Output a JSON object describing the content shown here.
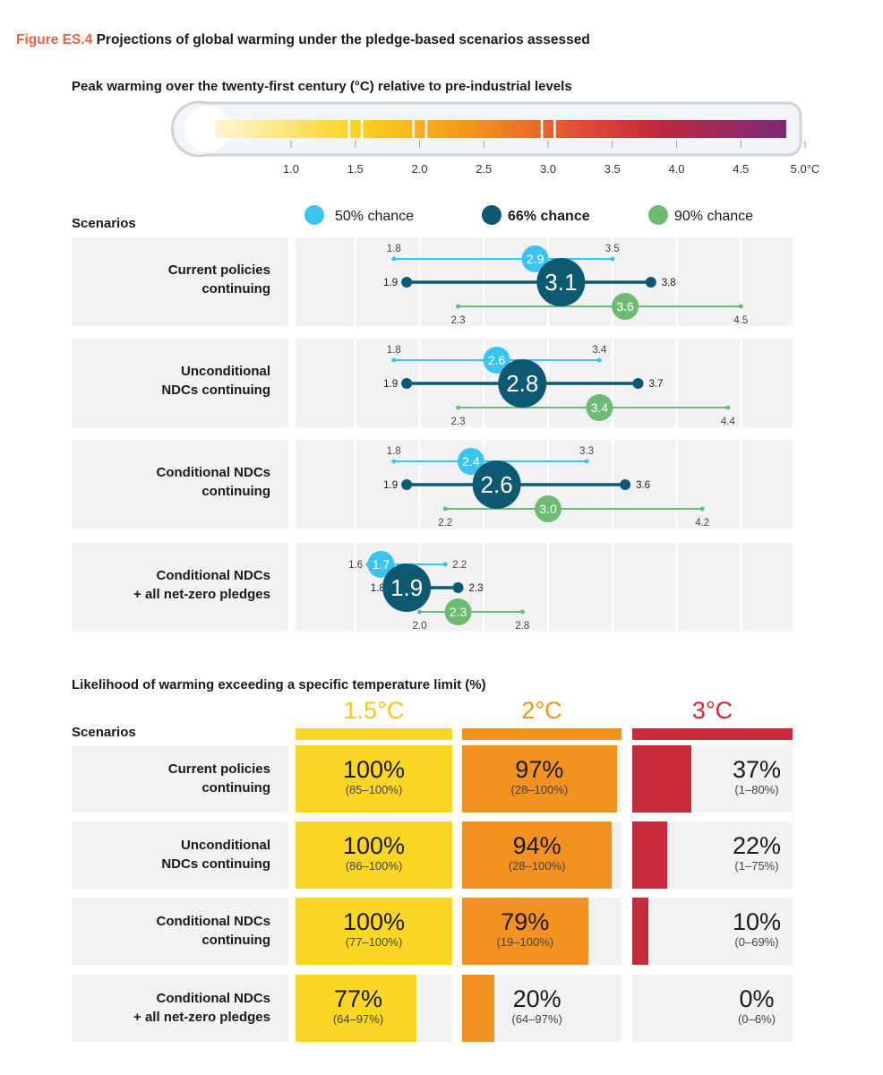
{
  "figure": {
    "label": "Figure ES.4",
    "title": "Projections of global warming under the pledge-based scenarios assessed"
  },
  "thermometer": {
    "title": "Peak warming over the twenty-first century (°C) relative to pre-industrial levels",
    "ticks": [
      "1.0",
      "1.5",
      "2.0",
      "2.5",
      "3.0",
      "3.5",
      "4.0",
      "4.5",
      "5.0°C"
    ],
    "gradient_colors": [
      "#fdf6d6",
      "#fbd21e",
      "#f3941e",
      "#e04a35",
      "#c0273f",
      "#7b2a7a"
    ]
  },
  "legend": {
    "scenarios_label": "Scenarios",
    "items": [
      {
        "label": "50% chance",
        "color": "#3cc3f0",
        "bold": false
      },
      {
        "label": "66% chance",
        "color": "#0b5a72",
        "bold": true
      },
      {
        "label": "90% chance",
        "color": "#6dba72",
        "bold": false
      }
    ]
  },
  "chart_data": [
    {
      "type": "range-dot",
      "title": "Peak warming over the twenty-first century (°C) relative to pre-industrial levels",
      "xlabel": "°C",
      "xlim": [
        1.0,
        5.0
      ],
      "series_names": [
        "50% chance",
        "66% chance",
        "90% chance"
      ],
      "scenarios": [
        {
          "name_lines": [
            "Current policies",
            "continuing"
          ],
          "p50": {
            "low": "1.8",
            "mid": "2.9",
            "high": "3.5"
          },
          "p66": {
            "low": "1.9",
            "mid": "3.1",
            "high": "3.8"
          },
          "p90": {
            "low": "2.3",
            "mid": "3.6",
            "high": "4.5"
          }
        },
        {
          "name_lines": [
            "Unconditional",
            "NDCs continuing"
          ],
          "p50": {
            "low": "1.8",
            "mid": "2.6",
            "high": "3.4"
          },
          "p66": {
            "low": "1.9",
            "mid": "2.8",
            "high": "3.7"
          },
          "p90": {
            "low": "2.3",
            "mid": "3.4",
            "high": "4.4"
          }
        },
        {
          "name_lines": [
            "Conditional NDCs",
            "continuing"
          ],
          "p50": {
            "low": "1.8",
            "mid": "2.4",
            "high": "3.3"
          },
          "p66": {
            "low": "1.9",
            "mid": "2.6",
            "high": "3.6"
          },
          "p90": {
            "low": "2.2",
            "mid": "3.0",
            "high": "4.2"
          }
        },
        {
          "name_lines": [
            "Conditional NDCs",
            "+ all net-zero pledges"
          ],
          "p50": {
            "low": "1.6",
            "mid": "1.7",
            "high": "2.2"
          },
          "p66": {
            "low": "1.8",
            "mid": "1.9",
            "high": "2.3"
          },
          "p90": {
            "low": "2.0",
            "mid": "2.3",
            "high": "2.8"
          }
        }
      ]
    },
    {
      "type": "table",
      "title": "Likelihood of warming exceeding a specific temperature limit (%)",
      "scenarios_label": "Scenarios",
      "columns": [
        {
          "label": "1.5°C",
          "color": "#fbd624",
          "text_color": "#f7c51e"
        },
        {
          "label": "2°C",
          "color": "#f39220",
          "text_color": "#f39220"
        },
        {
          "label": "3°C",
          "color": "#c8293b",
          "text_color": "#c8293b"
        }
      ],
      "rows": [
        {
          "name_lines": [
            "Current policies",
            "continuing"
          ],
          "cells": [
            {
              "value": 100,
              "text": "100%",
              "range": "(85–100%)"
            },
            {
              "value": 97,
              "text": "97%",
              "range": "(28–100%)"
            },
            {
              "value": 37,
              "text": "37%",
              "range": "(1–80%)"
            }
          ]
        },
        {
          "name_lines": [
            "Unconditional",
            "NDCs continuing"
          ],
          "cells": [
            {
              "value": 100,
              "text": "100%",
              "range": "(86–100%)"
            },
            {
              "value": 94,
              "text": "94%",
              "range": "(28–100%)"
            },
            {
              "value": 22,
              "text": "22%",
              "range": "(1–75%)"
            }
          ]
        },
        {
          "name_lines": [
            "Conditional NDCs",
            "continuing"
          ],
          "cells": [
            {
              "value": 100,
              "text": "100%",
              "range": "(77–100%)"
            },
            {
              "value": 79,
              "text": "79%",
              "range": "(19–100%)"
            },
            {
              "value": 10,
              "text": "10%",
              "range": "(0–69%)"
            }
          ]
        },
        {
          "name_lines": [
            "Conditional NDCs",
            "+ all net-zero pledges"
          ],
          "cells": [
            {
              "value": 77,
              "text": "77%",
              "range": "(64–97%)"
            },
            {
              "value": 20,
              "text": "20%",
              "range": "(64–97%)"
            },
            {
              "value": 0,
              "text": "0%",
              "range": "(0–6%)"
            }
          ]
        }
      ]
    }
  ]
}
